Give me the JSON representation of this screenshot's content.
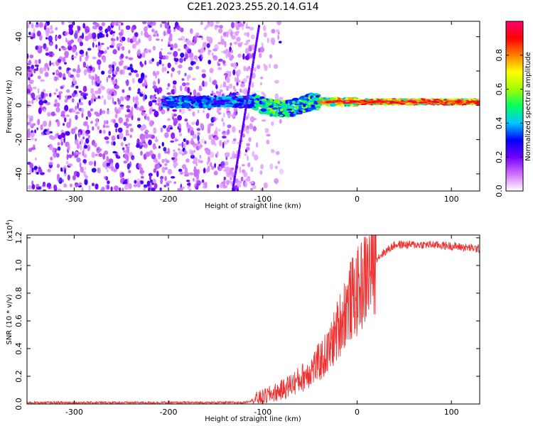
{
  "title": "C2E1.2023.255.20.14.G14",
  "chart_data": [
    {
      "type": "heatmap",
      "xlabel": "Height of straight line (km)",
      "ylabel": "Frequency (Hz)",
      "xlim": [
        -350,
        130
      ],
      "ylim": [
        -50,
        49
      ],
      "xticks": [
        -300,
        -200,
        -100,
        0,
        100
      ],
      "yticks": [
        -40,
        -20,
        0,
        20,
        40
      ],
      "colorbar": {
        "label": "Normalized spectral amplitude",
        "range": [
          0,
          1
        ],
        "ticks": [
          "0.0",
          "0.2",
          "0.4",
          "0.6",
          "0.8"
        ],
        "colors": [
          "#ffffff",
          "#d070ff",
          "#7000ff",
          "#0000ff",
          "#00c8ff",
          "#00ff60",
          "#a0ff00",
          "#ffff00",
          "#ff8000",
          "#ff0000",
          "#ff0070"
        ]
      },
      "signal_band_center_hz": 2,
      "noise_region_xmax_km": -110
    },
    {
      "type": "line",
      "xlabel": "Height of straight line (km)",
      "ylabel": "SNR (10 * v/v)",
      "y_scale_label": "(x10",
      "y_scale_exp": "4",
      "y_scale_close": ")",
      "xlim": [
        -350,
        130
      ],
      "ylim": [
        0,
        1.22
      ],
      "xticks": [
        -300,
        -200,
        -100,
        0,
        100
      ],
      "yticks": [
        "0.0",
        "0.2",
        "0.4",
        "0.6",
        "0.8",
        "1.0",
        "1.2"
      ],
      "series": [
        {
          "color": "#ee3333",
          "x": [
            -350,
            -300,
            -250,
            -200,
            -150,
            -120,
            -100,
            -80,
            -60,
            -40,
            -30,
            -20,
            -10,
            0,
            10,
            20,
            30,
            40,
            60,
            80,
            100,
            130
          ],
          "y": [
            0.01,
            0.01,
            0.01,
            0.01,
            0.01,
            0.01,
            0.05,
            0.1,
            0.18,
            0.3,
            0.38,
            0.55,
            0.72,
            0.8,
            0.92,
            1.05,
            1.1,
            1.15,
            1.15,
            1.15,
            1.14,
            1.12
          ]
        }
      ]
    }
  ]
}
